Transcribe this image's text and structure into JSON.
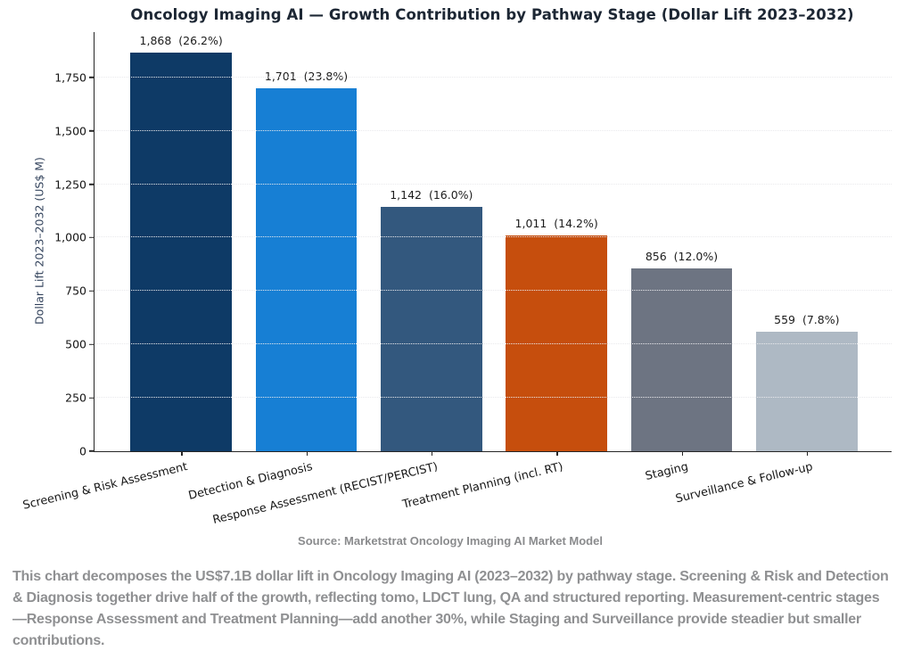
{
  "title": "Oncology Imaging AI — Growth Contribution by Pathway Stage (Dollar Lift 2023–2032)",
  "chart_data": {
    "type": "bar",
    "title": "Oncology Imaging AI — Growth Contribution by Pathway Stage (Dollar Lift 2023–2032)",
    "xlabel": "",
    "ylabel": "Dollar Lift 2023–2032 (US$ M)",
    "categories": [
      "Screening & Risk Assessment",
      "Detection & Diagnosis",
      "Response Assessment (RECIST/PERCIST)",
      "Treatment Planning (incl. RT)",
      "Staging",
      "Surveillance & Follow-up"
    ],
    "values": [
      1868,
      1701,
      1142,
      1011,
      856,
      559
    ],
    "pct_share": [
      "26.2%",
      "23.8%",
      "16.0%",
      "14.2%",
      "12.0%",
      "7.8%"
    ],
    "bar_labels": [
      "1,868  (26.2%)",
      "1,701  (23.8%)",
      "1,142  (16.0%)",
      "1,011  (14.2%)",
      "856  (12.0%)",
      "559  (7.8%)"
    ],
    "colors": [
      "#0e3a66",
      "#177fd4",
      "#33587e",
      "#c64e0d",
      "#6d7482",
      "#aeb9c4"
    ],
    "ylim": [
      0,
      1962
    ],
    "yticks": [
      0,
      250,
      500,
      750,
      1000,
      1250,
      1500,
      1750
    ],
    "ytick_labels": [
      "0",
      "250",
      "500",
      "750",
      "1,000",
      "1,250",
      "1,500",
      "1,750"
    ],
    "grid": "horizontal dotted, light gray, drawn over bars",
    "legend": "none"
  },
  "source_line": "Source: Marketstrat Oncology Imaging AI Market Model",
  "caption": "This chart decomposes the US$7.1B dollar lift in Oncology Imaging AI (2023–2032) by pathway stage. Screening & Risk and Detection & Diagnosis together drive half of the growth, reflecting tomo, LDCT lung, QA and structured reporting. Measurement-centric stages—Response Assessment and Treatment Planning—add another 30%, while Staging and Surveillance provide steadier but smaller contributions."
}
